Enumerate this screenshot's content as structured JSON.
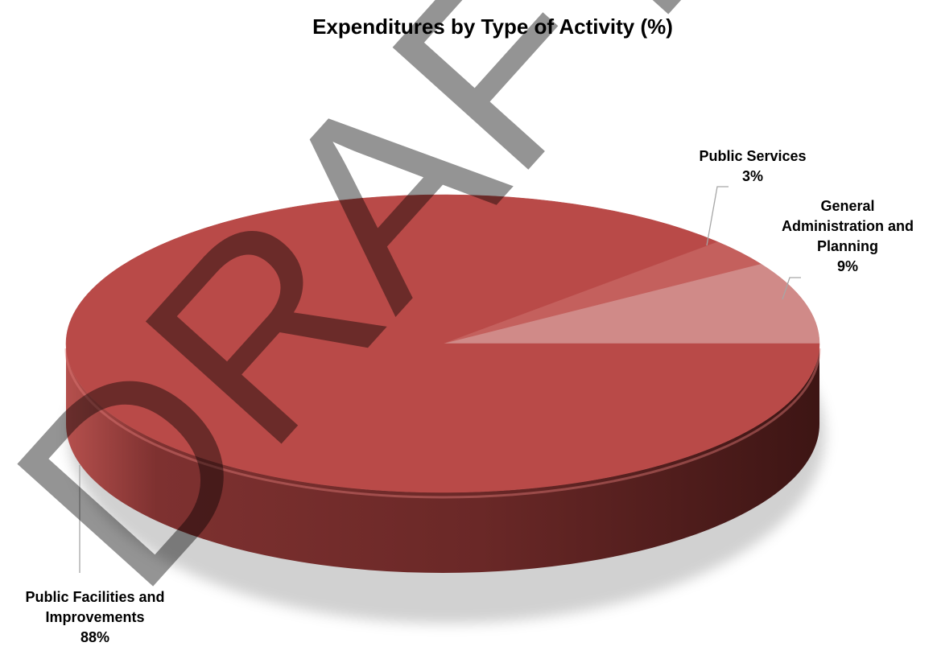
{
  "chart_data": {
    "type": "pie",
    "title": "Expenditures by Type of Activity (%)",
    "slices": [
      {
        "label_lines": [
          "Public Facilities and",
          "Improvements"
        ],
        "value_label": "88%",
        "value": 88,
        "color": "#b94a48"
      },
      {
        "label_lines": [
          "Public Services"
        ],
        "value_label": "3%",
        "value": 3,
        "color": "#c4605d"
      },
      {
        "label_lines": [
          "General",
          "Administration and",
          "Planning"
        ],
        "value_label": "9%",
        "value": 9,
        "color": "#d08a88"
      }
    ],
    "watermark": "DRAFT",
    "colors": {
      "side_dark": "#4a1a19",
      "side_light": "#8a3433"
    }
  }
}
